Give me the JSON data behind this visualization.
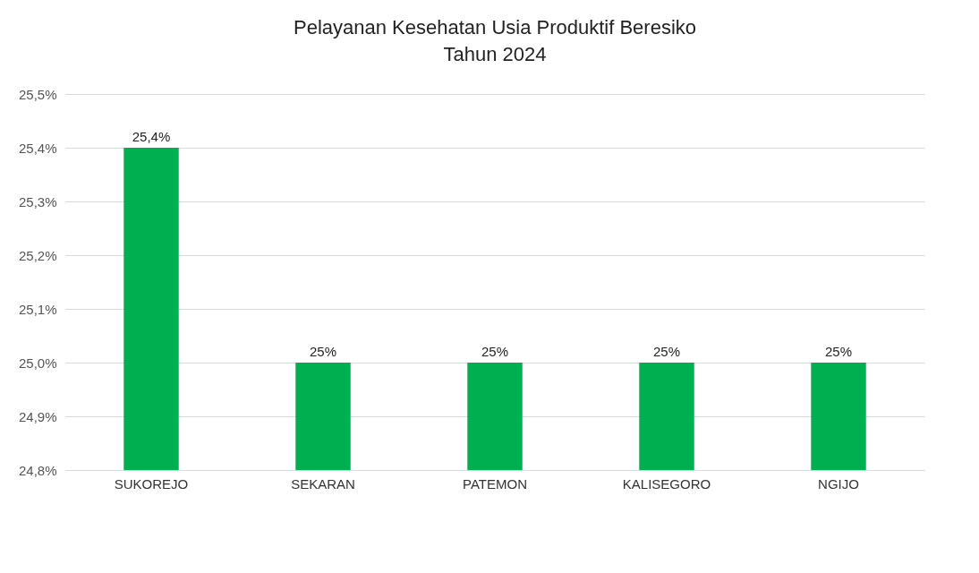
{
  "chart_data": {
    "type": "bar",
    "title": "Pelayanan Kesehatan Usia Produktif Beresiko\nTahun 2024",
    "categories": [
      "SUKOREJO",
      "SEKARAN",
      "PATEMON",
      "KALISEGORO",
      "NGIJO"
    ],
    "values": [
      25.4,
      25.0,
      25.0,
      25.0,
      25.0
    ],
    "value_labels": [
      "25,4%",
      "25%",
      "25%",
      "25%",
      "25%"
    ],
    "color": "#00b050",
    "ylim": [
      24.8,
      25.5
    ],
    "yticks": [
      {
        "value": 24.8,
        "label": "24,8%"
      },
      {
        "value": 24.9,
        "label": "24,9%"
      },
      {
        "value": 25.0,
        "label": "25,0%"
      },
      {
        "value": 25.1,
        "label": "25,1%"
      },
      {
        "value": 25.2,
        "label": "25,2%"
      },
      {
        "value": 25.3,
        "label": "25,3%"
      },
      {
        "value": 25.4,
        "label": "25,4%"
      },
      {
        "value": 25.5,
        "label": "25,5%"
      }
    ],
    "grid": "y",
    "legend": false
  }
}
